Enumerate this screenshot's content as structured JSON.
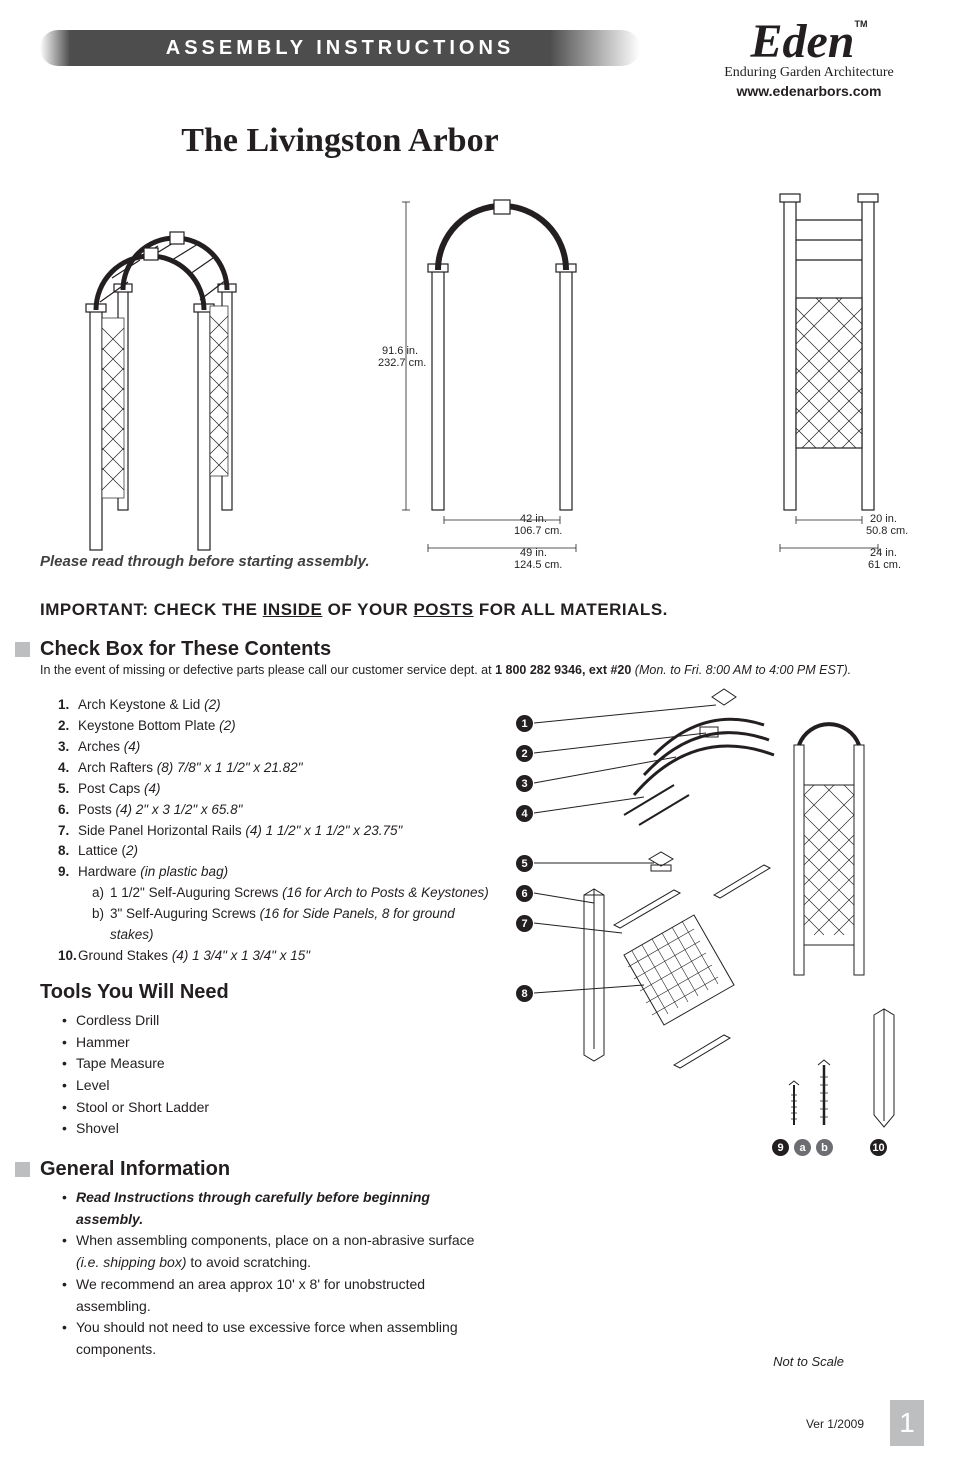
{
  "banner": "ASSEMBLY INSTRUCTIONS",
  "brand": {
    "logo": "Eden",
    "tm": "TM",
    "tagline": "Enduring Garden Architecture",
    "url": "www.edenarbors.com"
  },
  "product_title": "The Livingston Arbor",
  "read_note": "Please read through before starting assembly.",
  "dims": {
    "front_h_in": "91.6 in.",
    "front_h_cm": "232.7 cm.",
    "front_w_inner_in": "42 in.",
    "front_w_inner_cm": "106.7 cm.",
    "front_w_outer_in": "49 in.",
    "front_w_outer_cm": "124.5 cm.",
    "side_w_inner_in": "20 in.",
    "side_w_inner_cm": "50.8 cm.",
    "side_w_outer_in": "24 in.",
    "side_w_outer_cm": "61 cm."
  },
  "important": {
    "pre": "IMPORTANT:  CHECK THE ",
    "u1": "INSIDE",
    "mid": " OF YOUR ",
    "u2": "POSTS",
    "post": " FOR ALL MATERIALS."
  },
  "contents_hdr": "Check Box for These Contents",
  "contents_note": {
    "text": "In the event of missing or defective parts please call our customer service dept. at ",
    "phone": "1 800 282 9346, ext #20",
    "hours": " (Mon. to Fri. 8:00 AM to 4:00 PM EST)."
  },
  "contents": [
    {
      "n": "1.",
      "name": "Arch Keystone & Lid ",
      "dims": "(2)"
    },
    {
      "n": "2.",
      "name": "Keystone Bottom Plate ",
      "dims": "(2)"
    },
    {
      "n": "3.",
      "name": "Arches ",
      "dims": "(4)"
    },
    {
      "n": "4.",
      "name": "Arch Rafters ",
      "dims": "(8)  7/8\" x 1 1/2\" x 21.82\""
    },
    {
      "n": "5.",
      "name": "Post Caps ",
      "dims": "(4)"
    },
    {
      "n": "6.",
      "name": "Posts ",
      "dims": "(4)  2\" x 3 1/2\" x 65.8\""
    },
    {
      "n": "7.",
      "name": "Side Panel Horizontal Rails ",
      "dims": "(4)  1 1/2\" x 1 1/2\" x 23.75\""
    },
    {
      "n": "8.",
      "name": "Lattice (",
      "dims": "2)"
    },
    {
      "n": "9.",
      "name": "Hardware ",
      "dims": "(in plastic bag)",
      "sub": [
        {
          "l": "a)",
          "t": "1 1/2\" Self-Auguring Screws ",
          "d": "(16 for Arch to Posts & Keystones)"
        },
        {
          "l": "b)",
          "t": "3\" Self-Auguring Screws ",
          "d": "(16 for Side Panels, 8 for ground stakes)"
        }
      ]
    },
    {
      "n": "10.",
      "name": "Ground Stakes ",
      "dims": "(4) 1 3/4\" x 1 3/4\" x 15\""
    }
  ],
  "tools_hdr": "Tools You Will Need",
  "tools": [
    "Cordless Drill",
    "Hammer",
    "Tape Measure",
    "Level",
    "Stool or Short Ladder",
    "Shovel"
  ],
  "general_hdr": "General Information",
  "general": [
    {
      "em": true,
      "t": "Read Instructions through carefully before beginning assembly."
    },
    {
      "t": "When assembling components, place on a non-abrasive surface",
      "t2_it": "(i.e. shipping box)",
      "t2": " to avoid scratching."
    },
    {
      "t": "We recommend an area approx 10' x 8' for unobstructed assembling."
    },
    {
      "t": "You should not need to use excessive force when assembling components."
    }
  ],
  "callouts": [
    "1",
    "2",
    "3",
    "4",
    "5",
    "6",
    "7",
    "8"
  ],
  "bottom_callouts": {
    "nine": "9",
    "a": "a",
    "b": "b",
    "ten": "10"
  },
  "nts": "Not to Scale",
  "version": "Ver 1/2009",
  "page": "1",
  "colors": {
    "banner_bg": "#4d4d4d",
    "text": "#231f20",
    "grey_block": "#bcbec0",
    "line": "#231f20"
  }
}
